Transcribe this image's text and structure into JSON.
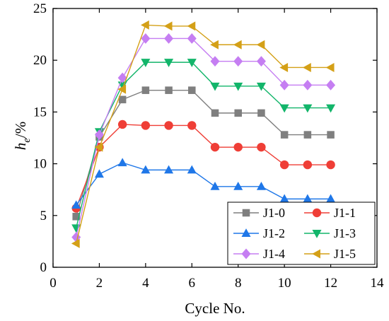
{
  "chart_data": {
    "type": "line",
    "xlabel": "Cycle No.",
    "ylabel_main": "h",
    "ylabel_sub": "e",
    "ylabel_suffix": "/%",
    "xlim": [
      0,
      14
    ],
    "ylim": [
      0,
      25
    ],
    "xticks": [
      0,
      2,
      4,
      6,
      8,
      10,
      12,
      14
    ],
    "yticks": [
      0,
      5,
      10,
      15,
      20,
      25
    ],
    "grid": false,
    "legend_position": "bottom-right",
    "x": [
      1,
      2,
      3,
      4,
      5,
      6,
      7,
      8,
      9,
      10,
      11,
      12
    ],
    "series": [
      {
        "name": "J1-0",
        "color": "#7f7f7f",
        "marker": "square",
        "values": [
          4.9,
          12.6,
          16.2,
          17.1,
          17.1,
          17.1,
          14.9,
          14.9,
          14.9,
          12.8,
          12.8,
          12.8
        ]
      },
      {
        "name": "J1-1",
        "color": "#ef3e36",
        "marker": "circle",
        "values": [
          5.7,
          11.6,
          13.8,
          13.7,
          13.7,
          13.7,
          11.6,
          11.6,
          11.6,
          9.9,
          9.9,
          9.9
        ]
      },
      {
        "name": "J1-2",
        "color": "#1f77e8",
        "marker": "triangle-up",
        "values": [
          6.0,
          9.0,
          10.1,
          9.4,
          9.4,
          9.4,
          7.8,
          7.8,
          7.8,
          6.6,
          6.6,
          6.6
        ]
      },
      {
        "name": "J1-3",
        "color": "#12b56a",
        "marker": "triangle-down",
        "values": [
          3.8,
          13.1,
          17.6,
          19.8,
          19.8,
          19.8,
          17.5,
          17.5,
          17.5,
          15.4,
          15.4,
          15.4
        ]
      },
      {
        "name": "J1-4",
        "color": "#c57ef2",
        "marker": "diamond",
        "values": [
          2.9,
          12.8,
          18.3,
          22.1,
          22.1,
          22.1,
          19.9,
          19.9,
          19.9,
          17.6,
          17.6,
          17.6
        ]
      },
      {
        "name": "J1-5",
        "color": "#d4a017",
        "marker": "triangle-left",
        "values": [
          2.3,
          11.6,
          17.2,
          23.4,
          23.3,
          23.3,
          21.5,
          21.5,
          21.5,
          19.3,
          19.3,
          19.3
        ]
      }
    ]
  }
}
